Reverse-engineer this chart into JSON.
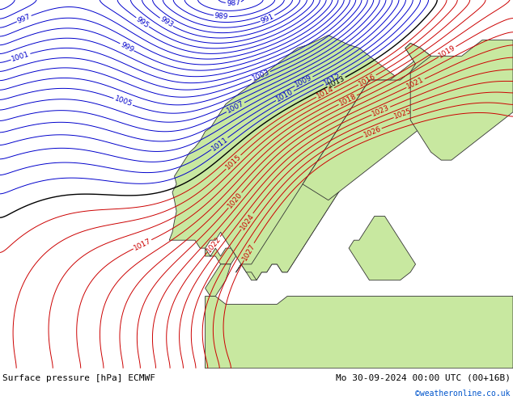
{
  "title_left": "Surface pressure [hPa] ECMWF",
  "title_right": "Mo 30-09-2024 00:00 UTC (00+16B)",
  "copyright": "©weatheronline.co.uk",
  "bg_color": "#d8d8d8",
  "land_color": "#c8e8a0",
  "isobar_blue_color": "#0000cc",
  "isobar_red_color": "#cc0000",
  "isobar_black_color": "#000000",
  "label_fontsize": 6.5,
  "footer_fontsize": 8,
  "copyright_fontsize": 7,
  "copyright_color": "#0055cc",
  "figwidth": 6.34,
  "figheight": 4.9,
  "dpi": 100
}
